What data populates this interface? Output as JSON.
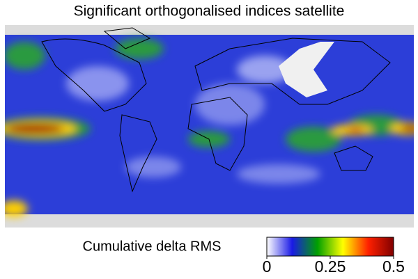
{
  "chart_data": {
    "type": "map",
    "title": "Significant orthogonalised indices satellite",
    "colorbar": {
      "label": "Cumulative delta RMS",
      "lim": [
        0,
        0.5
      ],
      "ticks": [
        0,
        0.25,
        0.5
      ],
      "colors": [
        "#ffffff",
        "#1a1ae6",
        "#00a000",
        "#ffff00",
        "#ff2000",
        "#800000"
      ]
    }
  }
}
